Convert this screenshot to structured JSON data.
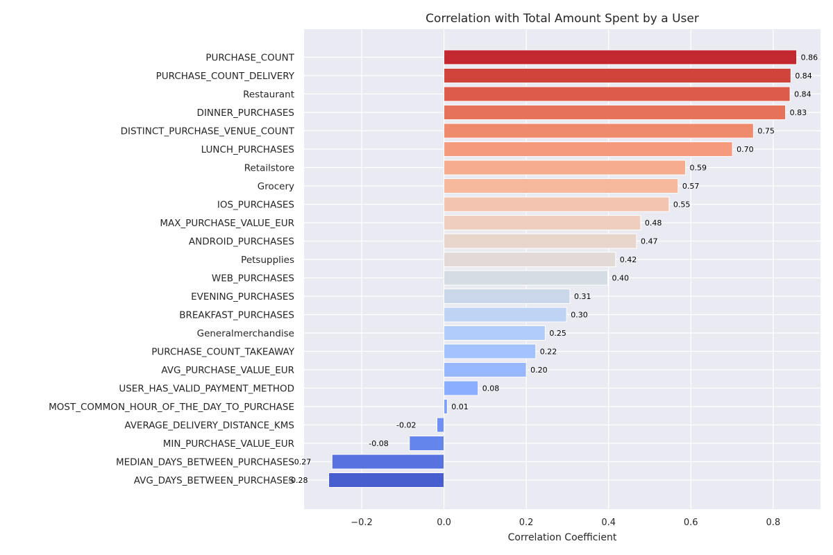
{
  "chart_data": {
    "type": "bar",
    "orientation": "horizontal",
    "title": "Correlation with Total Amount Spent by a User",
    "xlabel": "Correlation Coefficient",
    "ylabel": "",
    "xlim": [
      -0.34,
      0.915
    ],
    "xticks": [
      -0.2,
      0.0,
      0.2,
      0.4,
      0.6,
      0.8
    ],
    "xtick_labels": [
      "−0.2",
      "0.0",
      "0.2",
      "0.4",
      "0.6",
      "0.8"
    ],
    "grid": true,
    "colormap": "coolwarm",
    "categories": [
      "PURCHASE_COUNT",
      "PURCHASE_COUNT_DELIVERY",
      "Restaurant",
      "DINNER_PURCHASES",
      "DISTINCT_PURCHASE_VENUE_COUNT",
      "LUNCH_PURCHASES",
      "Retailstore",
      "Grocery",
      "IOS_PURCHASES",
      "MAX_PURCHASE_VALUE_EUR",
      "ANDROID_PURCHASES",
      "Petsupplies",
      "WEB_PURCHASES",
      "EVENING_PURCHASES",
      "BREAKFAST_PURCHASES",
      "Generalmerchandise",
      "PURCHASE_COUNT_TAKEAWAY",
      "AVG_PURCHASE_VALUE_EUR",
      "USER_HAS_VALID_PAYMENT_METHOD",
      "MOST_COMMON_HOUR_OF_THE_DAY_TO_PURCHASE",
      "AVERAGE_DELIVERY_DISTANCE_KMS",
      "MIN_PURCHASE_VALUE_EUR",
      "MEDIAN_DAYS_BETWEEN_PURCHASES",
      "AVG_DAYS_BETWEEN_PURCHASES"
    ],
    "values": [
      0.857,
      0.843,
      0.841,
      0.83,
      0.752,
      0.701,
      0.587,
      0.569,
      0.547,
      0.478,
      0.468,
      0.417,
      0.398,
      0.306,
      0.298,
      0.246,
      0.223,
      0.2,
      0.083,
      0.008,
      -0.017,
      -0.084,
      -0.272,
      -0.28
    ],
    "value_labels": [
      "0.86",
      "0.84",
      "0.84",
      "0.83",
      "0.75",
      "0.70",
      "0.59",
      "0.57",
      "0.55",
      "0.48",
      "0.47",
      "0.42",
      "0.40",
      "0.31",
      "0.30",
      "0.25",
      "0.22",
      "0.20",
      "0.08",
      "0.01",
      "-0.02",
      "-0.08",
      "-0.27",
      "-0.28"
    ],
    "colors": [
      "#c3272f",
      "#d0443c",
      "#dc5b4a",
      "#e67259",
      "#ef8a6c",
      "#f59a7c",
      "#f6ac8e",
      "#f7b99e",
      "#f3c5b0",
      "#f0cebd",
      "#e8d6cc",
      "#e2dad6",
      "#d6dce4",
      "#cad6ea",
      "#bfd3f5",
      "#b1cbfb",
      "#a4c3fe",
      "#97b8ff",
      "#8caefe",
      "#7b9ff9",
      "#7090f5",
      "#6485ec",
      "#5673e0",
      "#485ece"
    ]
  }
}
